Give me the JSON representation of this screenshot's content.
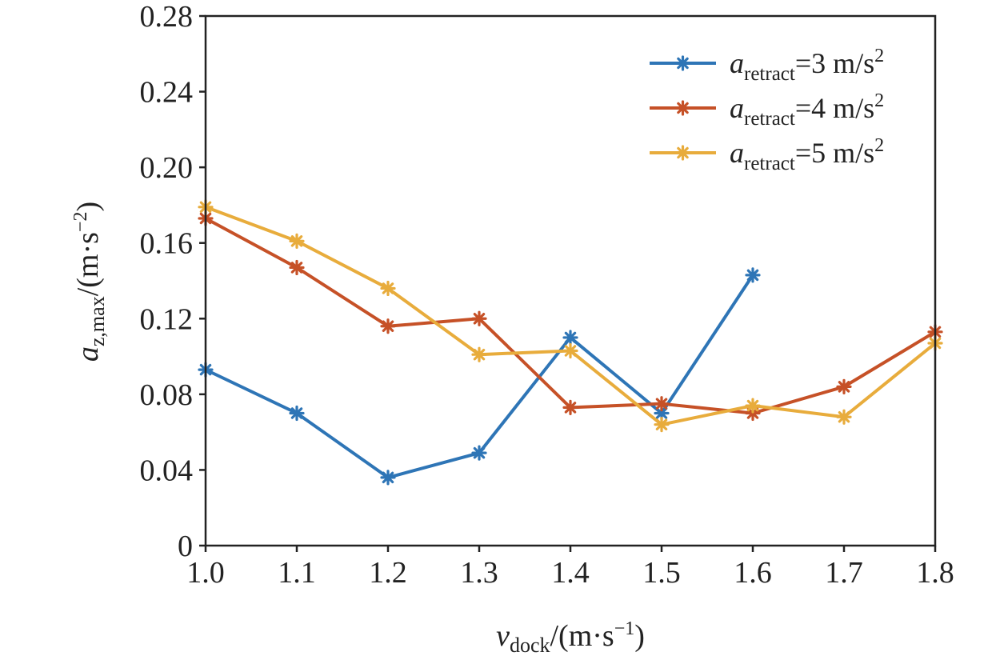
{
  "chart_data": {
    "type": "line",
    "x": [
      1.0,
      1.1,
      1.2,
      1.3,
      1.4,
      1.5,
      1.6,
      1.7,
      1.8
    ],
    "series": [
      {
        "name_symbol": "a",
        "name_subscript": "retract",
        "name_value": "=3 m/s",
        "name_superscript": "2",
        "color": "#2e75b6",
        "values": [
          0.093,
          0.07,
          0.036,
          0.049,
          0.11,
          0.07,
          0.143,
          null,
          null
        ]
      },
      {
        "name_symbol": "a",
        "name_subscript": "retract",
        "name_value": "=4 m/s",
        "name_superscript": "2",
        "color": "#c65127",
        "values": [
          0.173,
          0.147,
          0.116,
          0.12,
          0.073,
          0.075,
          0.07,
          0.084,
          0.113
        ]
      },
      {
        "name_symbol": "a",
        "name_subscript": "retract",
        "name_value": "=5 m/s",
        "name_superscript": "2",
        "color": "#e8ac3c",
        "values": [
          0.179,
          0.161,
          0.136,
          0.101,
          0.103,
          0.064,
          0.074,
          0.068,
          0.107
        ]
      }
    ],
    "xlabel": {
      "symbol": "v",
      "subscript": "dock",
      "unit_open": "/(m·s",
      "unit_exp": "−1",
      "unit_close": ")"
    },
    "ylabel": {
      "symbol": "a",
      "subscript": "z,max",
      "unit_open": "/(m·s",
      "unit_exp": "−2",
      "unit_close": ")"
    },
    "xlim": [
      1.0,
      1.8
    ],
    "ylim": [
      0,
      0.28
    ],
    "x_ticks": [
      "1.0",
      "1.1",
      "1.2",
      "1.3",
      "1.4",
      "1.5",
      "1.6",
      "1.7",
      "1.8"
    ],
    "y_ticks": [
      "0",
      "0.04",
      "0.08",
      "0.12",
      "0.16",
      "0.20",
      "0.24",
      "0.28"
    ],
    "y_tick_values": [
      0,
      0.04,
      0.08,
      0.12,
      0.16,
      0.2,
      0.24,
      0.28
    ],
    "marker": "asterisk",
    "grid": false,
    "legend_position": "top-right"
  }
}
